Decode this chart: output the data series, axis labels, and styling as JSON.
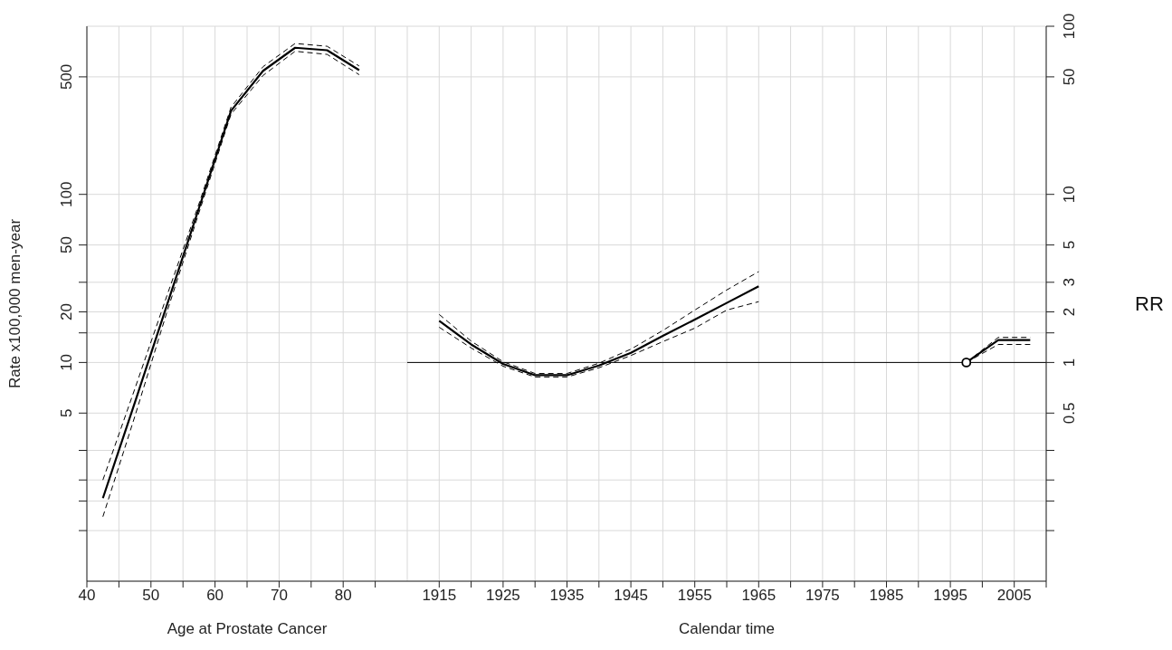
{
  "chart_data": [
    {
      "type": "line",
      "xlabel": "Age at Prostate Cancer",
      "ylabel": "Rate x100,000 men-year",
      "x": [
        42.5,
        47.5,
        52.5,
        57.5,
        62.5,
        67.5,
        72.5,
        77.5,
        82.5
      ],
      "xlim": [
        40,
        90
      ],
      "xticks": [
        40,
        {
          "value": 45,
          "label": null
        },
        50,
        {
          "value": 55,
          "label": null
        },
        60,
        {
          "value": 65,
          "label": null
        },
        70,
        {
          "value": 75,
          "label": null
        },
        80,
        {
          "value": 85,
          "label": null
        }
      ],
      "ylim": [
        0.5,
        1000
      ],
      "yticks": [
        {
          "value": 1,
          "label": null
        },
        {
          "value": 1.5,
          "label": null
        },
        {
          "value": 2,
          "label": null
        },
        {
          "value": 3,
          "label": null
        },
        5,
        10,
        {
          "value": 15,
          "label": null
        },
        20,
        {
          "value": 30,
          "label": null
        },
        50,
        100,
        500
      ],
      "log": "y",
      "grid": true,
      "series": [
        {
          "color": "#000000",
          "line_style": "solid",
          "values": [
            1.56,
            5.8,
            22,
            83,
            314,
            543,
            745,
            720,
            548
          ]
        },
        {
          "color": "#000000",
          "line_style": "dashed",
          "values": [
            1.21,
            4.8,
            20,
            78,
            300,
            510,
            710,
            680,
            515
          ]
        },
        {
          "color": "#000000",
          "line_style": "dashed",
          "values": [
            2.0,
            7,
            25,
            88,
            330,
            575,
            790,
            760,
            580
          ]
        }
      ]
    },
    {
      "type": "line",
      "xlabel": "Calendar time",
      "y2label": "RR",
      "xlim": [
        1910,
        2010
      ],
      "xticks": [
        1915,
        {
          "value": 1920,
          "label": null
        },
        1925,
        {
          "value": 1930,
          "label": null
        },
        1935,
        {
          "value": 1940,
          "label": null
        },
        1945,
        {
          "value": 1950,
          "label": null
        },
        1955,
        {
          "value": 1960,
          "label": null
        },
        1965,
        {
          "value": 1970,
          "label": null
        },
        1975,
        {
          "value": 1980,
          "label": null
        },
        1985,
        {
          "value": 1990,
          "label": null
        },
        1995,
        {
          "value": 2000,
          "label": null
        },
        2005,
        {
          "value": 2010,
          "label": null
        }
      ],
      "y2lim": [
        0.05,
        100
      ],
      "y2ticks": [
        {
          "value": 0.1,
          "label": null
        },
        {
          "value": 0.15,
          "label": null
        },
        {
          "value": 0.2,
          "label": null
        },
        {
          "value": 0.3,
          "label": null
        },
        0.5,
        1,
        {
          "value": 1.5,
          "label": null
        },
        2,
        3,
        5,
        10,
        50,
        100
      ],
      "log": "y2",
      "grid": true,
      "ref_lines": [
        {
          "axis": "y2",
          "value": 1,
          "color": "#000000"
        }
      ],
      "series": [
        {
          "axis": "y2",
          "color": "#000000",
          "line_style": "solid",
          "x": [
            1915,
            1920,
            1925,
            1930,
            1935,
            1940,
            1945,
            1950,
            1955,
            1960,
            1965
          ],
          "values": [
            1.77,
            1.28,
            0.98,
            0.84,
            0.84,
            0.96,
            1.14,
            1.44,
            1.8,
            2.26,
            2.84
          ]
        },
        {
          "axis": "y2",
          "color": "#000000",
          "line_style": "dashed",
          "x": [
            1915,
            1920,
            1925,
            1930,
            1935,
            1940,
            1945,
            1950,
            1955,
            1960,
            1965
          ],
          "values": [
            1.62,
            1.22,
            0.95,
            0.82,
            0.82,
            0.93,
            1.1,
            1.33,
            1.6,
            2.05,
            2.3
          ]
        },
        {
          "axis": "y2",
          "color": "#000000",
          "line_style": "dashed",
          "x": [
            1915,
            1920,
            1925,
            1930,
            1935,
            1940,
            1945,
            1950,
            1955,
            1960,
            1965
          ],
          "values": [
            1.93,
            1.34,
            1.01,
            0.86,
            0.86,
            0.99,
            1.2,
            1.55,
            2.05,
            2.7,
            3.47
          ]
        },
        {
          "axis": "y2",
          "color": "#000000",
          "line_style": "solid",
          "x": [
            1997.5,
            2002.5,
            2007.5
          ],
          "values": [
            1,
            1.36,
            1.36
          ]
        },
        {
          "axis": "y2",
          "color": "#000000",
          "line_style": "dashed",
          "x": [
            1997.5,
            2002.5,
            2007.5
          ],
          "values": [
            1,
            1.28,
            1.28
          ]
        },
        {
          "axis": "y2",
          "color": "#000000",
          "line_style": "dashed",
          "x": [
            1997.5,
            2002.5,
            2007.5
          ],
          "values": [
            1,
            1.41,
            1.41
          ]
        },
        {
          "type": "scatter",
          "axis": "y2",
          "color": "#000000",
          "marker": "circle",
          "x": [
            1997.5
          ],
          "values": [
            1
          ]
        }
      ]
    }
  ]
}
